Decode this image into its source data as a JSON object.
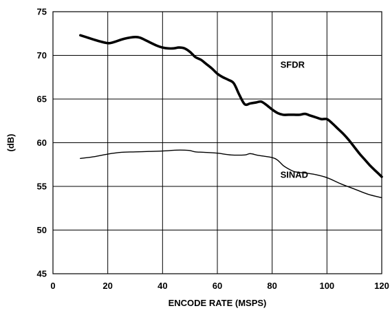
{
  "chart_data": {
    "type": "line",
    "title": "",
    "xlabel": "ENCODE RATE (MSPS)",
    "ylabel": "(dB)",
    "xlim": [
      0,
      120
    ],
    "ylim": [
      45,
      75
    ],
    "xticks": [
      0,
      20,
      40,
      60,
      80,
      100,
      120
    ],
    "yticks": [
      45,
      50,
      55,
      60,
      65,
      70,
      75
    ],
    "xtick_labels": [
      "0",
      "20",
      "40",
      "60",
      "80",
      "100",
      "120"
    ],
    "ytick_labels": [
      "45",
      "50",
      "55",
      "60",
      "65",
      "70",
      "75"
    ],
    "grid": true,
    "legend": "none",
    "series": [
      {
        "name": "SFDR",
        "color": "#000000",
        "emphasis": "thick",
        "x": [
          10,
          12,
          16,
          20,
          22,
          26,
          30,
          32,
          34,
          38,
          40,
          42,
          44,
          46,
          48,
          50,
          52,
          54,
          56,
          58,
          60,
          62,
          64,
          66,
          68,
          70,
          72,
          74,
          76,
          78,
          80,
          82,
          84,
          86,
          88,
          90,
          92,
          94,
          96,
          98,
          100,
          102,
          104,
          106,
          108,
          110,
          112,
          114,
          116,
          118,
          120
        ],
        "y": [
          72.3,
          72.1,
          71.7,
          71.4,
          71.5,
          71.9,
          72.1,
          72.0,
          71.7,
          71.1,
          70.9,
          70.8,
          70.8,
          70.9,
          70.8,
          70.4,
          69.8,
          69.5,
          69.0,
          68.5,
          67.9,
          67.5,
          67.2,
          66.8,
          65.5,
          64.4,
          64.5,
          64.6,
          64.7,
          64.3,
          63.8,
          63.4,
          63.2,
          63.2,
          63.2,
          63.2,
          63.3,
          63.1,
          62.9,
          62.7,
          62.7,
          62.2,
          61.6,
          61.0,
          60.3,
          59.5,
          58.7,
          58.0,
          57.3,
          56.7,
          56.1
        ]
      },
      {
        "name": "SINAD",
        "color": "#000000",
        "emphasis": "thin",
        "x": [
          10,
          15,
          20,
          25,
          30,
          35,
          40,
          45,
          48,
          50,
          52,
          55,
          60,
          65,
          70,
          72,
          75,
          80,
          82,
          84,
          86,
          88,
          90,
          95,
          100,
          105,
          110,
          115,
          120
        ],
        "y": [
          58.2,
          58.4,
          58.7,
          58.9,
          58.95,
          59.0,
          59.05,
          59.15,
          59.15,
          59.1,
          58.95,
          58.9,
          58.8,
          58.6,
          58.6,
          58.75,
          58.55,
          58.3,
          58.0,
          57.4,
          57.0,
          56.7,
          56.6,
          56.4,
          56.0,
          55.3,
          54.7,
          54.1,
          53.7
        ]
      }
    ],
    "annotations": [
      {
        "text": "SFDR",
        "x": 83,
        "y": 68.6
      },
      {
        "text": "SINAD",
        "x": 83,
        "y": 56.0
      }
    ]
  }
}
